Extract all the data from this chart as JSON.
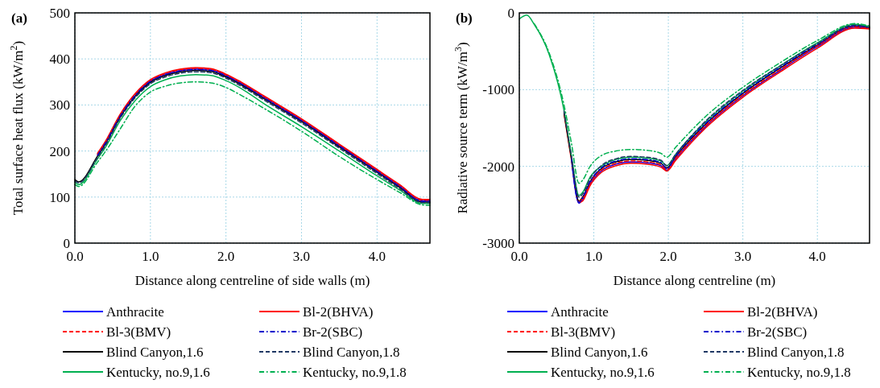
{
  "chart_data": [
    {
      "type": "line",
      "title": "(a)",
      "xlabel": "Distance along centreline of side walls (m)",
      "ylabel": "Total surface heat flux (kW/m$^{2}$)",
      "xlim": [
        0,
        4.7
      ],
      "xticks": [
        {
          "value": 0,
          "label": "0.0"
        },
        {
          "value": 1,
          "label": "1.0"
        },
        {
          "value": 2,
          "label": "2.0"
        },
        {
          "value": 3,
          "label": "3.0"
        },
        {
          "value": 4,
          "label": "4.0"
        }
      ],
      "ylim": [
        0,
        500
      ],
      "yticks": [
        0,
        100,
        200,
        300,
        400,
        500
      ],
      "grid": true,
      "legend": "bottom",
      "marker": "none",
      "x": [
        0,
        0.05,
        0.3,
        0.4,
        0.6,
        0.8,
        1.0,
        1.2,
        1.4,
        1.6,
        1.8,
        2.0,
        2.2,
        2.5,
        3.0,
        3.5,
        4.0,
        4.3,
        4.6,
        4.7
      ],
      "series": [
        {
          "name": "Anthracite",
          "color": "#0000ff",
          "line_style": "solid",
          "values": [
            null,
            null,
            null,
            null,
            null,
            322,
            352,
            367,
            375,
            378,
            376,
            364,
            347,
            317,
            267,
            212,
            157,
            124,
            92,
            92
          ]
        },
        {
          "name": "Bl-2(BHVA)",
          "color": "#ff0000",
          "line_style": "solid",
          "values": [
            null,
            null,
            195,
            220,
            280,
            325,
            355,
            370,
            378,
            381,
            379,
            367,
            350,
            320,
            270,
            215,
            160,
            127,
            95,
            95
          ]
        },
        {
          "name": "Bl-3(BMV)",
          "color": "#ff0000",
          "line_style": "dashed",
          "values": [
            null,
            null,
            193,
            218,
            278,
            323,
            353,
            368,
            376,
            379,
            377,
            365,
            348,
            318,
            268,
            213,
            158,
            125,
            93,
            93
          ]
        },
        {
          "name": "Br-2(SBC)",
          "color": "#0000cc",
          "line_style": "dashdot",
          "values": [
            null,
            null,
            191,
            216,
            276,
            321,
            351,
            366,
            374,
            377,
            375,
            363,
            346,
            316,
            266,
            211,
            156,
            123,
            91,
            91
          ]
        },
        {
          "name": "Blind Canyon,1.6",
          "color": "#000000",
          "line_style": "solid",
          "values": [
            138,
            133,
            189,
            214,
            274,
            319,
            349,
            364,
            372,
            375,
            373,
            361,
            344,
            314,
            264,
            209,
            154,
            121,
            89,
            89
          ]
        },
        {
          "name": "Blind Canyon,1.8",
          "color": "#1f3864",
          "line_style": "dashed",
          "values": [
            135,
            131,
            186,
            211,
            271,
            316,
            346,
            361,
            369,
            372,
            370,
            358,
            341,
            311,
            261,
            206,
            151,
            118,
            88,
            88
          ]
        },
        {
          "name": "Kentucky, no.9,1.6",
          "color": "#00b050",
          "line_style": "solid",
          "values": [
            132,
            127,
            183,
            207,
            266,
            310,
            340,
            355,
            363,
            366,
            364,
            353,
            336,
            303,
            253,
            200,
            146,
            115,
            86,
            86
          ]
        },
        {
          "name": "Kentucky, no.9,1.8",
          "color": "#00b050",
          "line_style": "dashdot",
          "values": [
            127,
            123,
            176,
            198,
            248,
            298,
            328,
            341,
            348,
            350,
            348,
            338,
            321,
            293,
            243,
            188,
            138,
            110,
            83,
            82
          ]
        }
      ]
    },
    {
      "type": "line",
      "title": "(b)",
      "xlabel": "Distance along centreline (m)",
      "ylabel": "Radiative source term (kW/m$^{3}$)",
      "xlim": [
        0,
        4.7
      ],
      "xticks": [
        {
          "value": 0,
          "label": "0.0"
        },
        {
          "value": 1,
          "label": "1.0"
        },
        {
          "value": 2,
          "label": "2.0"
        },
        {
          "value": 3,
          "label": "3.0"
        },
        {
          "value": 4,
          "label": "4.0"
        }
      ],
      "ylim": [
        -3000,
        0
      ],
      "yticks": [
        -3000,
        -2000,
        -1000,
        0
      ],
      "grid": true,
      "legend": "bottom",
      "marker": "none",
      "x": [
        0,
        0.1,
        0.2,
        0.4,
        0.6,
        0.7,
        0.8,
        0.85,
        0.95,
        1.1,
        1.3,
        1.5,
        1.7,
        1.9,
        1.98,
        2.1,
        2.5,
        3.0,
        3.5,
        4.0,
        4.5,
        4.7
      ],
      "series": [
        {
          "name": "Anthracite",
          "color": "#0000ff",
          "line_style": "solid",
          "values": [
            null,
            null,
            null,
            null,
            null,
            -1910,
            -2480,
            -2430,
            -2230,
            -2060,
            -1970,
            -1940,
            -1950,
            -1990,
            -2050,
            -1900,
            -1480,
            -1080,
            -750,
            -440,
            -190,
            -200
          ]
        },
        {
          "name": "Bl-2(BHVA)",
          "color": "#ff0000",
          "line_style": "solid",
          "values": [
            null,
            null,
            null,
            null,
            -1320,
            -1920,
            -2470,
            -2450,
            -2250,
            -2080,
            -1990,
            -1960,
            -1970,
            -2010,
            -2060,
            -1920,
            -1500,
            -1100,
            -770,
            -460,
            -200,
            -210
          ]
        },
        {
          "name": "Bl-3(BMV)",
          "color": "#ff0000",
          "line_style": "dashed",
          "values": [
            null,
            null,
            null,
            null,
            null,
            null,
            -2460,
            -2420,
            -2220,
            -2050,
            -1960,
            -1930,
            -1940,
            -1980,
            -2040,
            -1890,
            -1470,
            -1070,
            -740,
            -430,
            -180,
            -200
          ]
        },
        {
          "name": "Br-2(SBC)",
          "color": "#0000cc",
          "line_style": "dashdot",
          "values": [
            null,
            null,
            null,
            null,
            null,
            -1890,
            -2470,
            -2410,
            -2200,
            -2020,
            -1930,
            -1900,
            -1910,
            -1950,
            -2030,
            -1860,
            -1440,
            -1040,
            -710,
            -410,
            -170,
            -190
          ]
        },
        {
          "name": "Blind Canyon,1.6",
          "color": "#000000",
          "line_style": "solid",
          "values": [
            null,
            null,
            null,
            null,
            -1300,
            -1900,
            -2450,
            -2400,
            -2200,
            -2030,
            -1940,
            -1910,
            -1920,
            -1960,
            -2020,
            -1870,
            -1450,
            -1050,
            -720,
            -420,
            -170,
            -190
          ]
        },
        {
          "name": "Blind Canyon,1.8",
          "color": "#1f3864",
          "line_style": "dashed",
          "values": [
            null,
            null,
            null,
            null,
            -1280,
            -1870,
            -2400,
            -2360,
            -2160,
            -1990,
            -1900,
            -1870,
            -1880,
            -1920,
            -1990,
            -1840,
            -1410,
            -1010,
            -690,
            -400,
            -160,
            -190
          ]
        },
        {
          "name": "Kentucky, no.9,1.6",
          "color": "#00b050",
          "line_style": "solid",
          "values": [
            -80,
            -30,
            -150,
            -540,
            -1270,
            -1860,
            -2380,
            -2340,
            -2140,
            -2000,
            -1910,
            -1880,
            -1890,
            -1930,
            -1990,
            -1840,
            -1420,
            -1020,
            -690,
            -390,
            -150,
            -180
          ]
        },
        {
          "name": "Kentucky, no.9,1.8",
          "color": "#00b050",
          "line_style": "dashdot",
          "values": [
            null,
            null,
            -140,
            -520,
            -1200,
            -1700,
            -2220,
            -2180,
            -2000,
            -1860,
            -1800,
            -1780,
            -1790,
            -1830,
            -1880,
            -1750,
            -1350,
            -970,
            -650,
            -360,
            -140,
            -170
          ]
        }
      ]
    }
  ]
}
